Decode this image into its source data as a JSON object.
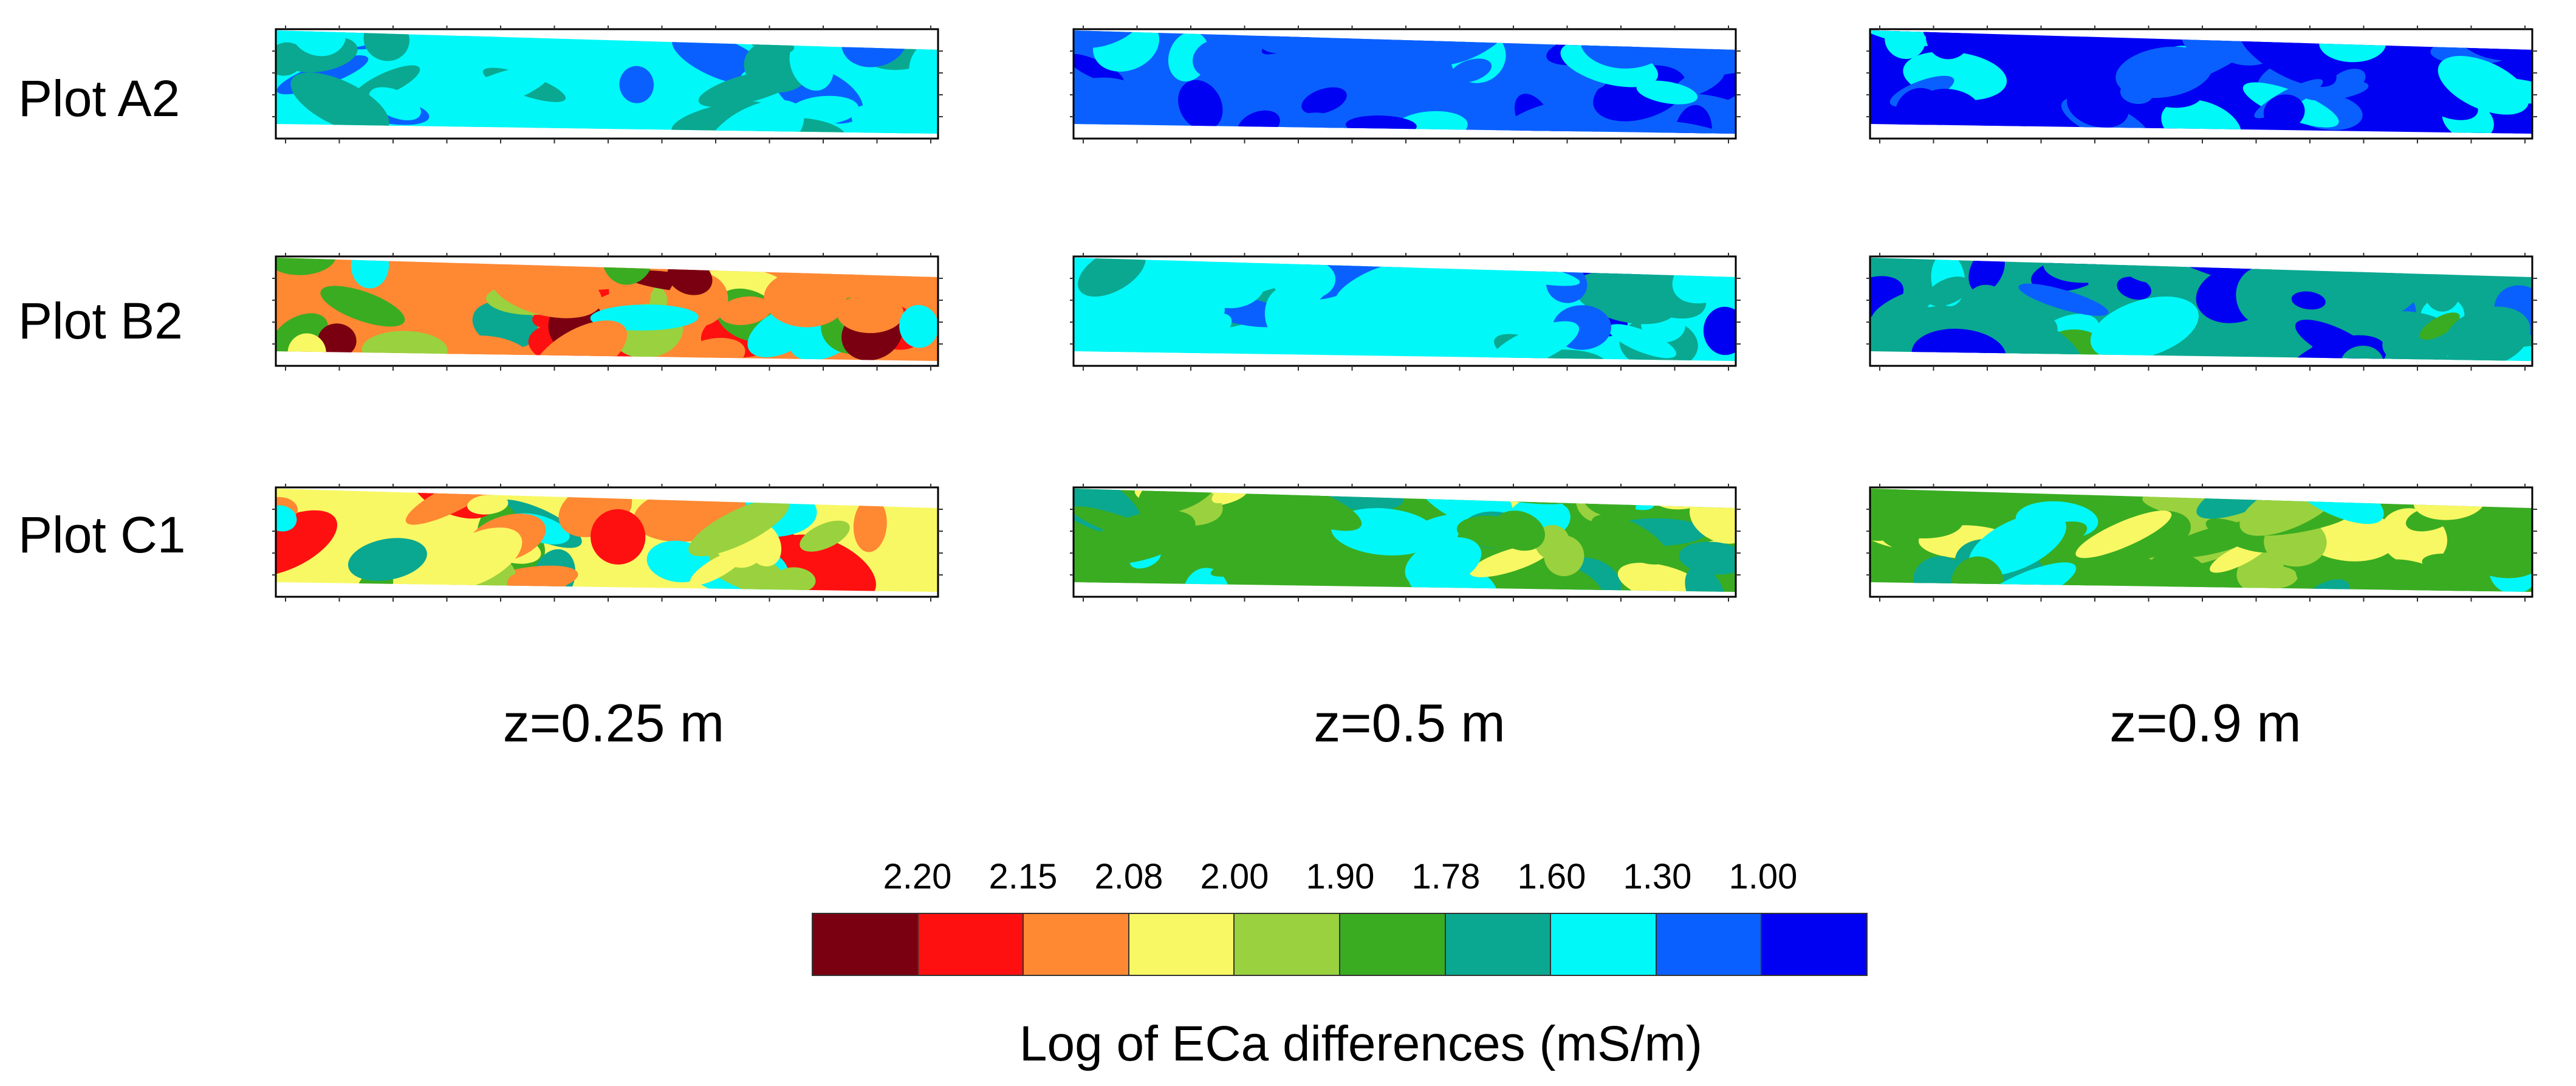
{
  "figure": {
    "row_labels": [
      "Plot A2",
      "Plot B2",
      "Plot C1"
    ],
    "column_labels": [
      "z=0.25 m",
      "z=0.5 m",
      "z=0.9 m"
    ]
  },
  "colorbar": {
    "title": "Log of ECa differences (mS/m)",
    "tick_labels": [
      "2.20",
      "2.15",
      "2.08",
      "2.00",
      "1.90",
      "1.78",
      "1.60",
      "1.30",
      "1.00"
    ],
    "colors": [
      "#7a0011",
      "#ff1010",
      "#ff8833",
      "#f8f864",
      "#99d23e",
      "#3aac22",
      "#0aa890",
      "#00f8f8",
      "#0a60ff",
      "#0000f2"
    ]
  },
  "chart_data": {
    "type": "heatmap",
    "title": "",
    "value_label": "Log of ECa differences (mS/m)",
    "class_breaks": [
      2.2,
      2.15,
      2.08,
      2.0,
      1.9,
      1.78,
      1.6,
      1.3,
      1.0
    ],
    "classes": [
      ">2.20",
      "2.15-2.20",
      "2.08-2.15",
      "2.00-2.08",
      "1.90-2.00",
      "1.78-1.90",
      "1.60-1.78",
      "1.30-1.60",
      "1.00-1.30",
      "<1.00"
    ],
    "rows": [
      "Plot A2",
      "Plot B2",
      "Plot C1"
    ],
    "columns": [
      "z=0.25 m",
      "z=0.5 m",
      "z=0.9 m"
    ],
    "panels": [
      {
        "plot": "Plot A2",
        "depth": "z=0.25 m",
        "dominant_class": "1.30-1.60",
        "min_class": "1.00-1.30",
        "max_class": "1.60-1.78"
      },
      {
        "plot": "Plot A2",
        "depth": "z=0.5 m",
        "dominant_class": "1.00-1.30",
        "min_class": "<1.00",
        "max_class": "1.30-1.60"
      },
      {
        "plot": "Plot A2",
        "depth": "z=0.9 m",
        "dominant_class": "<1.00",
        "min_class": "<1.00",
        "max_class": "1.30-1.60"
      },
      {
        "plot": "Plot B2",
        "depth": "z=0.25 m",
        "dominant_class": "2.08-2.15",
        "min_class": "1.00-1.30",
        "max_class": ">2.20"
      },
      {
        "plot": "Plot B2",
        "depth": "z=0.5 m",
        "dominant_class": "1.30-1.60",
        "min_class": "<1.00",
        "max_class": "1.60-1.78"
      },
      {
        "plot": "Plot B2",
        "depth": "z=0.9 m",
        "dominant_class": "1.60-1.78",
        "min_class": "<1.00",
        "max_class": "1.78-1.90"
      },
      {
        "plot": "Plot C1",
        "depth": "z=0.25 m",
        "dominant_class": "2.00-2.08",
        "min_class": "1.30-1.60",
        "max_class": "2.15-2.20"
      },
      {
        "plot": "Plot C1",
        "depth": "z=0.5 m",
        "dominant_class": "1.78-1.90",
        "min_class": "1.30-1.60",
        "max_class": "2.00-2.08"
      },
      {
        "plot": "Plot C1",
        "depth": "z=0.9 m",
        "dominant_class": "1.78-1.90",
        "min_class": "1.30-1.60",
        "max_class": "2.00-2.08"
      }
    ]
  }
}
